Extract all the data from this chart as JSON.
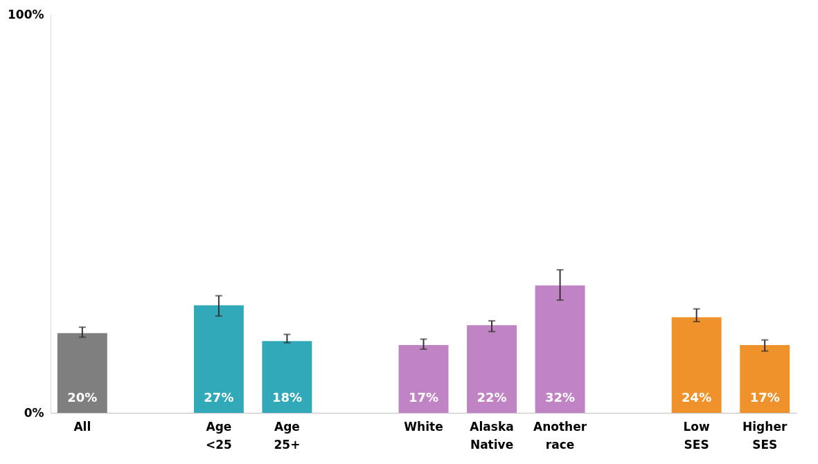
{
  "chart_data": {
    "type": "bar",
    "categories": [
      "All",
      null,
      "Age <25",
      "Age 25+",
      null,
      "White",
      "Alaska Native",
      "Another race",
      null,
      "Low SES",
      "Higher SES"
    ],
    "values": [
      20,
      null,
      27,
      18,
      null,
      17,
      22,
      32,
      null,
      24,
      17
    ],
    "colors": [
      "#7f7f7f",
      null,
      "#31a9b8",
      "#31a9b8",
      null,
      "#c084c4",
      "#c084c4",
      "#c084c4",
      null,
      "#f0922b",
      "#f0922b"
    ],
    "errors": [
      [
        19,
        21.5
      ],
      null,
      [
        24.3,
        29.4
      ],
      [
        17.6,
        19.7
      ],
      null,
      [
        16,
        18.5
      ],
      [
        20.4,
        23.1
      ],
      [
        28.3,
        35.9
      ],
      null,
      [
        22.9,
        26.1
      ],
      [
        15.5,
        18.3
      ]
    ],
    "ylim": [
      0,
      100
    ],
    "yticks": [
      {
        "value": 0,
        "label": "0%"
      },
      {
        "value": 100,
        "label": "100%"
      }
    ],
    "data_labels": true,
    "value_labels": [
      "20%",
      null,
      "27%",
      "18%",
      null,
      "17%",
      "22%",
      "32%",
      null,
      "24%",
      "17%"
    ],
    "grid": false
  }
}
